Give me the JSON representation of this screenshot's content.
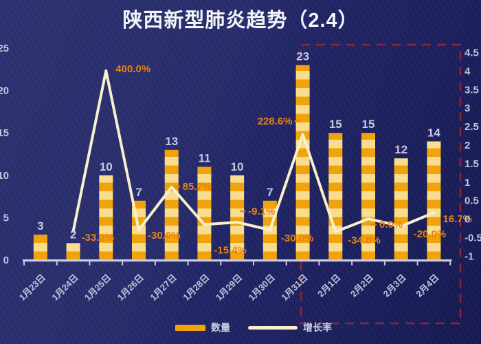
{
  "chart_data": {
    "type": "bar",
    "title": "陕西新型肺炎趋势（2.4）",
    "categories": [
      "1月23日",
      "1月24日",
      "1月25日",
      "1月26日",
      "1月27日",
      "1月28日",
      "1月29日",
      "1月30日",
      "1月31日",
      "2月1日",
      "2月2日",
      "2月3日",
      "2月4日"
    ],
    "series": [
      {
        "name": "数量",
        "type": "bar",
        "axis": "left",
        "values": [
          3,
          2,
          10,
          7,
          13,
          11,
          10,
          7,
          23,
          15,
          15,
          12,
          14
        ]
      },
      {
        "name": "增长率",
        "type": "line",
        "axis": "right",
        "values": [
          null,
          -33.3,
          400.0,
          -30.0,
          85.7,
          -15.4,
          -9.1,
          -30.0,
          228.6,
          -34.8,
          0.0,
          -20.0,
          16.7
        ],
        "labels": [
          "",
          "-33.3%",
          "400.0%",
          "-30.0%",
          "85.7%",
          "-15.4%",
          "-9.1%",
          "-30.0%",
          "228.6%",
          "-34.8%",
          "0.0%",
          "-20.0%",
          "16.7%"
        ]
      }
    ],
    "left_axis": {
      "ticks": [
        "0",
        "5",
        "10",
        "15",
        "20",
        "25"
      ],
      "range": [
        0,
        25
      ]
    },
    "right_axis": {
      "ticks": [
        "-1",
        "-0.5",
        "0",
        "0.5",
        "1",
        "1.5",
        "2",
        "2.5",
        "3",
        "3.5",
        "4",
        "4.5"
      ],
      "range": [
        -1,
        4.5
      ]
    },
    "legend": {
      "position": "bottom",
      "items": [
        {
          "label": "数量",
          "color": "#F1A30B"
        },
        {
          "label": "增长率",
          "color": "#F7F0CB"
        }
      ]
    },
    "grid": false,
    "annotation": {
      "type": "dashed-box",
      "covers": [
        "1月31日",
        "2月4日"
      ],
      "color": "#932435"
    }
  },
  "colors": {
    "background": "#23276A",
    "bar_orange": "#F1A30B",
    "bar_light": "#F9DD8E",
    "line": "#F7F0CB",
    "label_orange": "#E8820E",
    "bar_label": "#C6C9E2",
    "axis": "#C9CDE4",
    "text": "#C2C5DE",
    "title": "#F4F5FA",
    "annotation": "#932435"
  }
}
